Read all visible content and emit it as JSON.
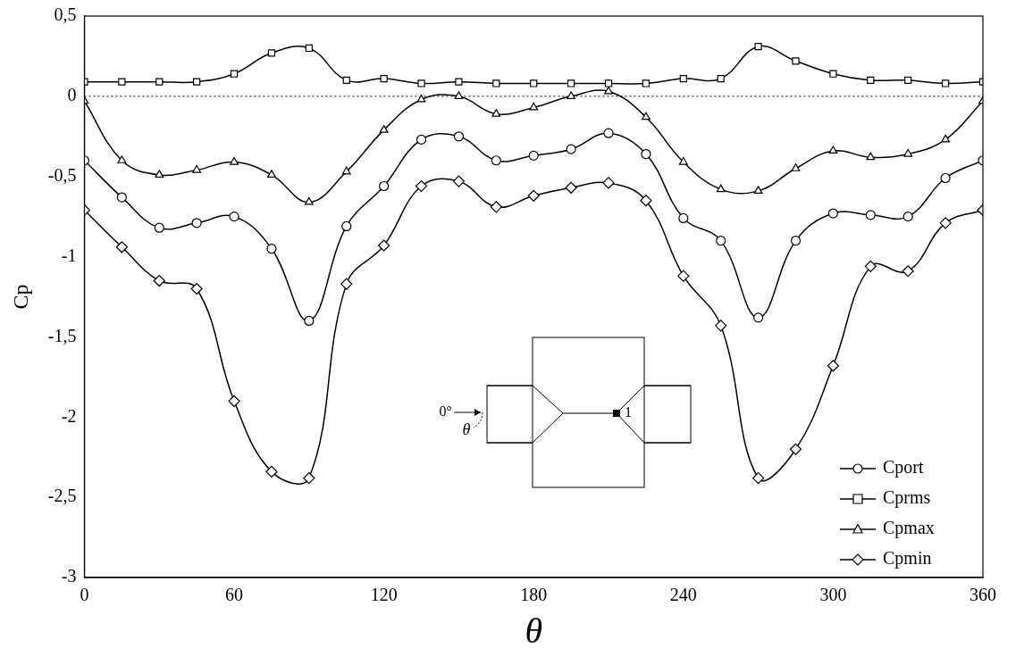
{
  "chart_data": {
    "type": "line",
    "x_label": "θ",
    "y_label": "Cp",
    "x": [
      0,
      15,
      30,
      45,
      60,
      75,
      90,
      105,
      120,
      135,
      150,
      165,
      180,
      195,
      210,
      225,
      240,
      255,
      270,
      285,
      300,
      315,
      330,
      345,
      360
    ],
    "series": [
      {
        "name": "Cport",
        "color": "#000000",
        "marker": "circle",
        "values": [
          -0.4,
          -0.63,
          -0.82,
          -0.79,
          -0.75,
          -0.95,
          -1.4,
          -0.81,
          -0.56,
          -0.27,
          -0.25,
          -0.4,
          -0.37,
          -0.33,
          -0.23,
          -0.36,
          -0.76,
          -0.9,
          -1.38,
          -0.9,
          -0.73,
          -0.74,
          -0.75,
          -0.51,
          -0.4
        ]
      },
      {
        "name": "Cprms",
        "color": "#000000",
        "marker": "square",
        "values": [
          0.09,
          0.09,
          0.09,
          0.09,
          0.14,
          0.27,
          0.3,
          0.1,
          0.11,
          0.08,
          0.09,
          0.08,
          0.08,
          0.08,
          0.08,
          0.08,
          0.11,
          0.11,
          0.31,
          0.22,
          0.14,
          0.1,
          0.1,
          0.08,
          0.09
        ]
      },
      {
        "name": "Cpmax",
        "color": "#000000",
        "marker": "triangle",
        "values": [
          -0.03,
          -0.4,
          -0.49,
          -0.46,
          -0.41,
          -0.49,
          -0.66,
          -0.47,
          -0.21,
          -0.02,
          0.0,
          -0.11,
          -0.07,
          0.0,
          0.03,
          -0.13,
          -0.41,
          -0.58,
          -0.59,
          -0.45,
          -0.34,
          -0.38,
          -0.36,
          -0.27,
          -0.03
        ]
      },
      {
        "name": "Cpmin",
        "color": "#000000",
        "marker": "diamond",
        "values": [
          -0.71,
          -0.94,
          -1.15,
          -1.2,
          -1.9,
          -2.34,
          -2.38,
          -1.17,
          -0.93,
          -0.56,
          -0.53,
          -0.69,
          -0.62,
          -0.57,
          -0.54,
          -0.65,
          -1.12,
          -1.43,
          -2.38,
          -2.2,
          -1.68,
          -1.06,
          -1.09,
          -0.79,
          -0.71
        ]
      }
    ],
    "xlim": [
      0,
      360
    ],
    "xticks": [
      0,
      60,
      120,
      180,
      240,
      300,
      360
    ],
    "ylim": [
      -3,
      0.5
    ],
    "yticks": [
      -3,
      {
        "value": -2.5,
        "label": "-2,5"
      },
      -2,
      {
        "value": -1.5,
        "label": "-1,5"
      },
      -1,
      {
        "value": -0.5,
        "label": "-0,5"
      },
      0,
      {
        "value": 0.5,
        "label": "0,5"
      }
    ],
    "hlines": [
      0
    ],
    "grid": false,
    "legend": "lower right",
    "annotations": [
      "0°",
      "θ",
      "1"
    ]
  }
}
